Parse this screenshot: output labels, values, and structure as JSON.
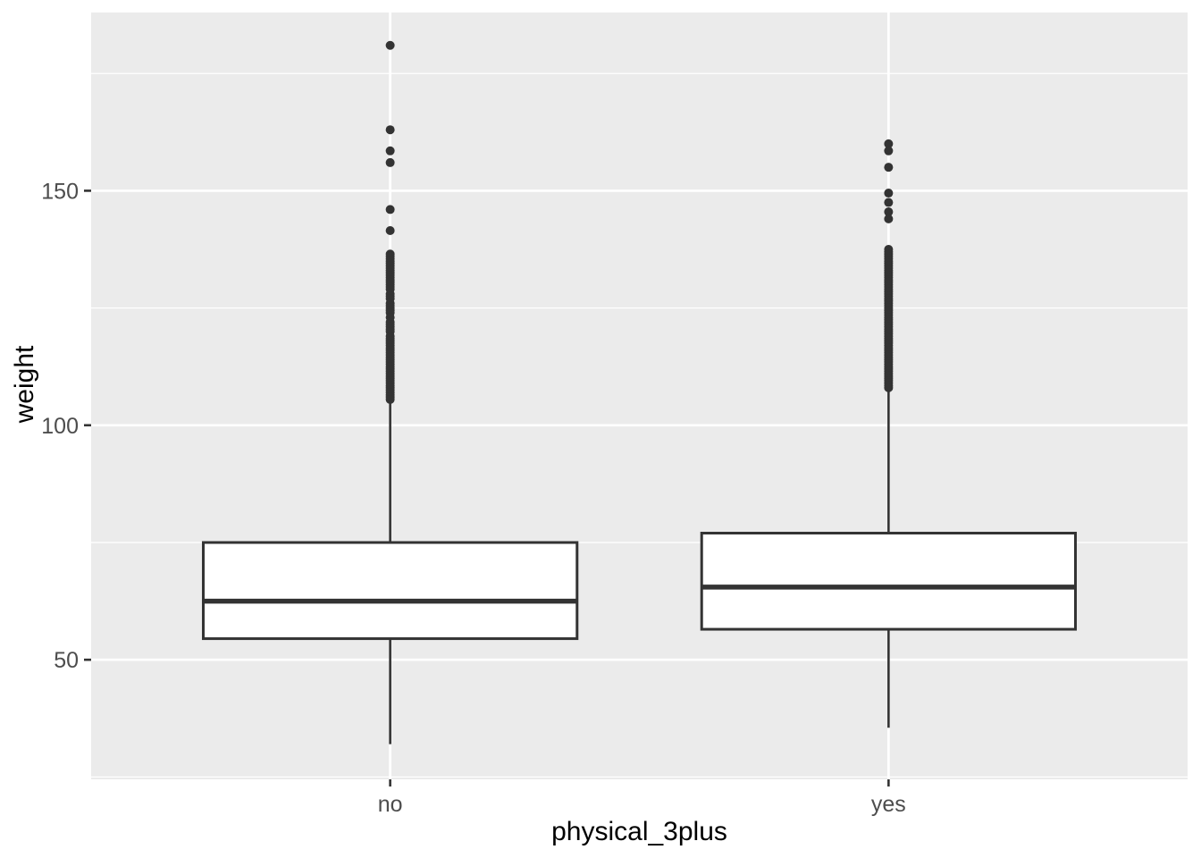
{
  "chart_data": {
    "type": "boxplot",
    "title": "",
    "xlabel": "physical_3plus",
    "ylabel": "weight",
    "categories": [
      "no",
      "yes"
    ],
    "y_axis": {
      "major_ticks": [
        50,
        100,
        150
      ],
      "minor_ticks": [
        25,
        75,
        125,
        175
      ],
      "ylim": [
        24.5,
        188
      ]
    },
    "legend": "none",
    "grid": "on",
    "series": [
      {
        "category": "no",
        "whisker_low": 32,
        "q1": 54.5,
        "median": 62.5,
        "q3": 75,
        "whisker_high": 105,
        "outliers": [
          181,
          163,
          158.5,
          156,
          146,
          141.5,
          136.5,
          136,
          135.5,
          135,
          134.5,
          134,
          133.5,
          133,
          132.5,
          132,
          131.5,
          131,
          130.5,
          130,
          129.5,
          129,
          128,
          127.5,
          127,
          126,
          125.5,
          125,
          124.5,
          124,
          123,
          122,
          121.5,
          121,
          120.5,
          120,
          119,
          118.5,
          118,
          117.5,
          117,
          116.5,
          116,
          115.5,
          115,
          114.5,
          114,
          113.5,
          113,
          112.5,
          112,
          111.5,
          111,
          110.5,
          110,
          109.5,
          109,
          108.5,
          108,
          107.5,
          107,
          106.5,
          106,
          105.5
        ]
      },
      {
        "category": "yes",
        "whisker_low": 35.5,
        "q1": 56.5,
        "median": 65.5,
        "q3": 77,
        "whisker_high": 107.5,
        "outliers": [
          160,
          158.5,
          155,
          149.5,
          147.5,
          145.5,
          144,
          137.5,
          137,
          136.5,
          136,
          135.5,
          135,
          134.5,
          134,
          133.5,
          133,
          132.5,
          132,
          131.5,
          131,
          130.5,
          130,
          129.5,
          129,
          128.5,
          128,
          127.5,
          127,
          126.5,
          126,
          125.5,
          125,
          124.5,
          124,
          123.5,
          123,
          122.5,
          122,
          121.5,
          121,
          120.5,
          120,
          119.5,
          119,
          118.5,
          118,
          117.5,
          117,
          116.5,
          116,
          115.5,
          115,
          114.5,
          114,
          113.5,
          113,
          112.5,
          112,
          111.5,
          111,
          110.5,
          110,
          109.5,
          109,
          108.5,
          108
        ]
      }
    ],
    "style": {
      "panel_bg": "#EBEBEB",
      "grid_color": "#FFFFFF",
      "box_stroke": "#333333",
      "box_fill": "#FFFFFF",
      "tick_mark_color": "#333333",
      "tick_label_color": "#4D4D4D",
      "axis_title_color": "#000000"
    }
  }
}
